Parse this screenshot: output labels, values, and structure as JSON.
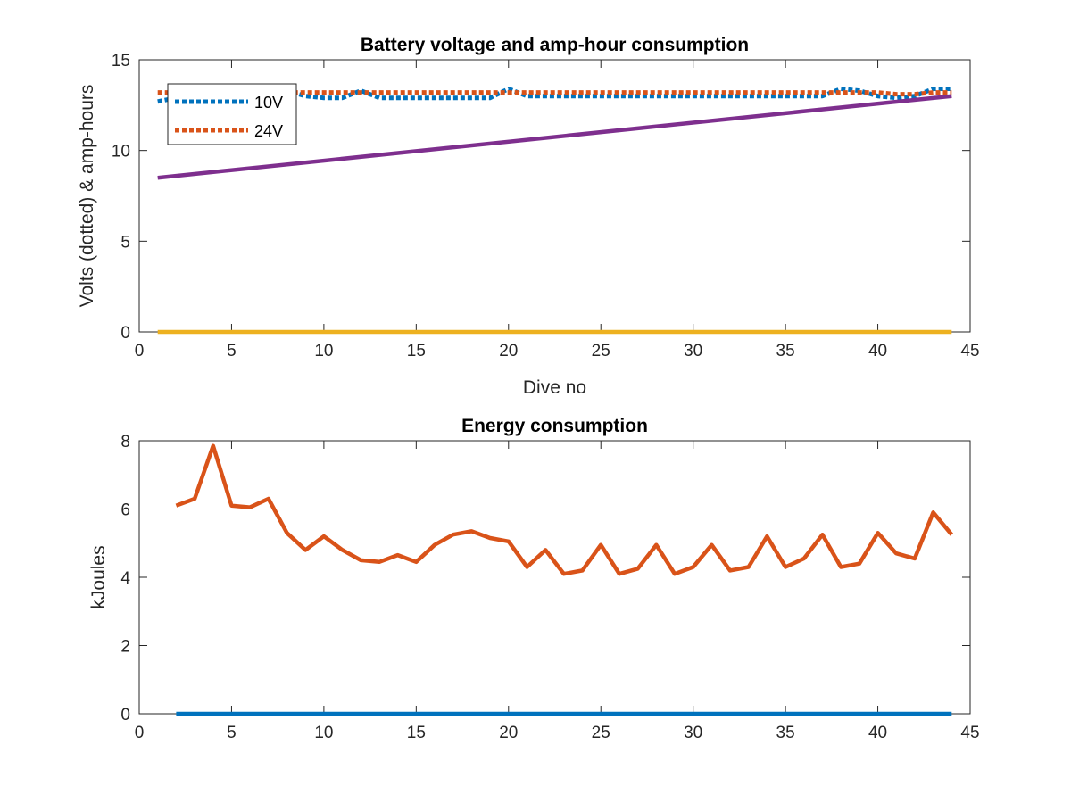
{
  "chart_data": [
    {
      "type": "line",
      "title": "Battery voltage and amp-hour consumption",
      "xlabel": "Dive no",
      "ylabel": "Volts (dotted) & amp-hours",
      "xlim": [
        0,
        45
      ],
      "ylim": [
        0,
        15
      ],
      "xticks": [
        "0",
        "5",
        "10",
        "15",
        "20",
        "25",
        "30",
        "35",
        "40",
        "45"
      ],
      "yticks": [
        "0",
        "5",
        "10",
        "15"
      ],
      "grid": false,
      "legend_position": "top-left",
      "legend": [
        "10V",
        "24V"
      ],
      "series": [
        {
          "name": "10V",
          "color": "#0072BD",
          "style": "dotted",
          "x": [
            1,
            2,
            3,
            4,
            5,
            6,
            7,
            8,
            9,
            10,
            11,
            12,
            13,
            14,
            15,
            16,
            17,
            18,
            19,
            20,
            21,
            22,
            23,
            24,
            25,
            26,
            27,
            28,
            29,
            30,
            31,
            32,
            33,
            34,
            35,
            36,
            37,
            38,
            39,
            40,
            41,
            42,
            43,
            44
          ],
          "values": [
            12.7,
            12.9,
            13.0,
            13.1,
            13.2,
            13.2,
            13.2,
            13.3,
            13.0,
            12.9,
            12.9,
            13.3,
            12.9,
            12.9,
            12.9,
            12.9,
            12.9,
            12.9,
            12.9,
            13.4,
            13.0,
            13.0,
            13.0,
            13.0,
            13.0,
            13.0,
            13.0,
            13.0,
            13.0,
            13.0,
            13.0,
            13.0,
            13.0,
            13.0,
            13.0,
            13.0,
            13.0,
            13.4,
            13.3,
            13.0,
            12.9,
            13.0,
            13.4,
            13.4
          ]
        },
        {
          "name": "24V",
          "color": "#D95319",
          "style": "dotted",
          "x": [
            1,
            2,
            3,
            4,
            5,
            6,
            7,
            8,
            9,
            10,
            11,
            12,
            13,
            14,
            15,
            16,
            17,
            18,
            19,
            20,
            21,
            22,
            23,
            24,
            25,
            26,
            27,
            28,
            29,
            30,
            31,
            32,
            33,
            34,
            35,
            36,
            37,
            38,
            39,
            40,
            41,
            42,
            43,
            44
          ],
          "values": [
            13.2,
            13.2,
            13.2,
            13.2,
            13.2,
            13.2,
            13.2,
            13.2,
            13.2,
            13.2,
            13.2,
            13.2,
            13.2,
            13.2,
            13.2,
            13.2,
            13.2,
            13.2,
            13.2,
            13.2,
            13.2,
            13.2,
            13.2,
            13.2,
            13.2,
            13.2,
            13.2,
            13.2,
            13.2,
            13.2,
            13.2,
            13.2,
            13.2,
            13.2,
            13.2,
            13.2,
            13.2,
            13.2,
            13.2,
            13.2,
            13.1,
            13.1,
            13.2,
            13.2
          ]
        },
        {
          "color": "#7E2F8E",
          "style": "solid",
          "x": [
            1,
            44
          ],
          "values": [
            8.5,
            13.0
          ]
        },
        {
          "color": "#EDB120",
          "style": "solid",
          "x": [
            1,
            44
          ],
          "values": [
            0,
            0
          ]
        }
      ]
    },
    {
      "type": "line",
      "title": "Energy consumption",
      "xlabel": "",
      "ylabel": "kJoules",
      "xlim": [
        0,
        45
      ],
      "ylim": [
        0,
        8
      ],
      "xticks": [
        "0",
        "5",
        "10",
        "15",
        "20",
        "25",
        "30",
        "35",
        "40",
        "45"
      ],
      "yticks": [
        "0",
        "2",
        "4",
        "6",
        "8"
      ],
      "grid": false,
      "series": [
        {
          "color": "#D95319",
          "style": "solid",
          "x": [
            2,
            3,
            4,
            5,
            6,
            7,
            8,
            9,
            10,
            11,
            12,
            13,
            14,
            15,
            16,
            17,
            18,
            19,
            20,
            21,
            22,
            23,
            24,
            25,
            26,
            27,
            28,
            29,
            30,
            31,
            32,
            33,
            34,
            35,
            36,
            37,
            38,
            39,
            40,
            41,
            42,
            43,
            44
          ],
          "values": [
            6.1,
            6.3,
            7.85,
            6.1,
            6.05,
            6.3,
            5.3,
            4.8,
            5.2,
            4.8,
            4.5,
            4.45,
            4.65,
            4.45,
            4.95,
            5.25,
            5.35,
            5.15,
            5.05,
            4.3,
            4.8,
            4.1,
            4.2,
            4.95,
            4.1,
            4.25,
            4.95,
            4.1,
            4.3,
            4.95,
            4.2,
            4.3,
            5.2,
            4.3,
            4.55,
            5.25,
            4.3,
            4.4,
            5.3,
            4.7,
            4.55,
            5.9,
            5.25
          ]
        },
        {
          "color": "#0072BD",
          "style": "solid",
          "x": [
            2,
            44
          ],
          "values": [
            0,
            0
          ]
        }
      ]
    }
  ]
}
